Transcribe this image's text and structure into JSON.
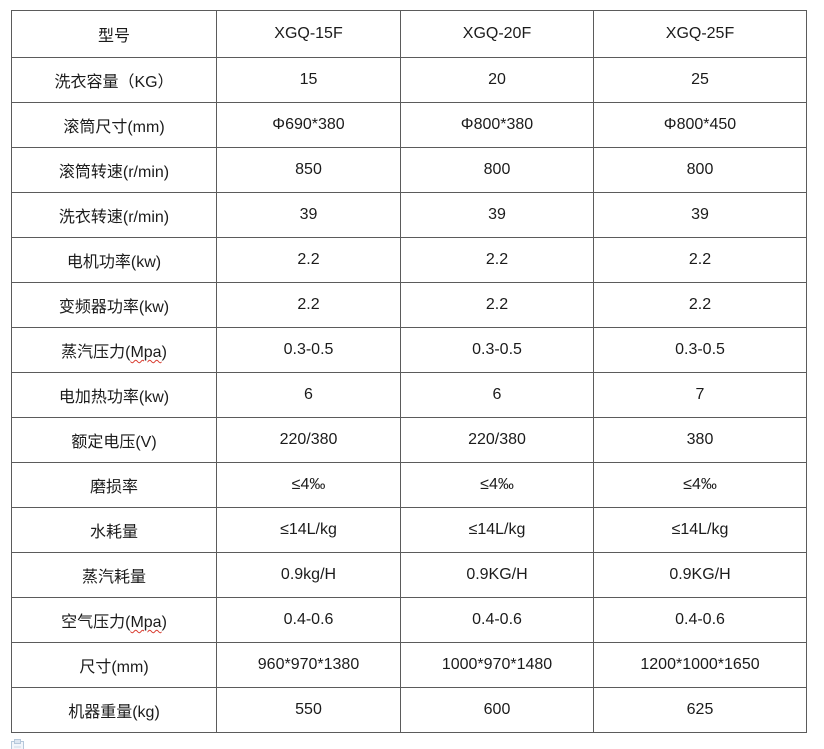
{
  "page": {
    "background": "#ffffff",
    "border_color": "#5b5b5b",
    "text_color": "#1b1b1b",
    "squiggle_color": "#d83b2f"
  },
  "table": {
    "header": {
      "label": "型号",
      "models": [
        "XGQ-15F",
        "XGQ-20F",
        "XGQ-25F"
      ]
    },
    "rows": [
      {
        "label": "洗衣容量（KG）",
        "values": [
          "15",
          "20",
          "25"
        ]
      },
      {
        "label": "滚筒尺寸(mm)",
        "values": [
          "Φ690*380",
          "Φ800*380",
          "Φ800*450"
        ]
      },
      {
        "label": "滚筒转速(r/min)",
        "values": [
          "850",
          "800",
          "800"
        ]
      },
      {
        "label": "洗衣转速(r/min)",
        "values": [
          "39",
          "39",
          "39"
        ]
      },
      {
        "label": "电机功率(kw)",
        "values": [
          "2.2",
          "2.2",
          "2.2"
        ]
      },
      {
        "label": "变频器功率(kw)",
        "values": [
          "2.2",
          "2.2",
          "2.2"
        ]
      },
      {
        "label": "蒸汽压力(Mpa)",
        "squiggle": "Mpa",
        "values": [
          "0.3-0.5",
          "0.3-0.5",
          "0.3-0.5"
        ]
      },
      {
        "label": "电加热功率(kw)",
        "values": [
          "6",
          "6",
          "7"
        ]
      },
      {
        "label": "额定电压(V)",
        "values": [
          "220/380",
          "220/380",
          "380"
        ]
      },
      {
        "label": "磨损率",
        "values": [
          "≤4‰",
          "≤4‰",
          "≤4‰"
        ]
      },
      {
        "label": "水耗量",
        "values": [
          "≤14L/kg",
          "≤14L/kg",
          "≤14L/kg"
        ]
      },
      {
        "label": "蒸汽耗量",
        "values": [
          "0.9kg/H",
          "0.9KG/H",
          "0.9KG/H"
        ]
      },
      {
        "label": "空气压力(Mpa)",
        "squiggle": "Mpa",
        "values": [
          "0.4-0.6",
          "0.4-0.6",
          "0.4-0.6"
        ]
      },
      {
        "label": "尺寸(mm)",
        "values": [
          "960*970*1380",
          "1000*970*1480",
          "1200*1000*1650"
        ]
      },
      {
        "label": "机器重量(kg)",
        "values": [
          "550",
          "600",
          "625"
        ]
      }
    ]
  },
  "icons": {
    "paste_options": "clipboard-paste-icon"
  }
}
